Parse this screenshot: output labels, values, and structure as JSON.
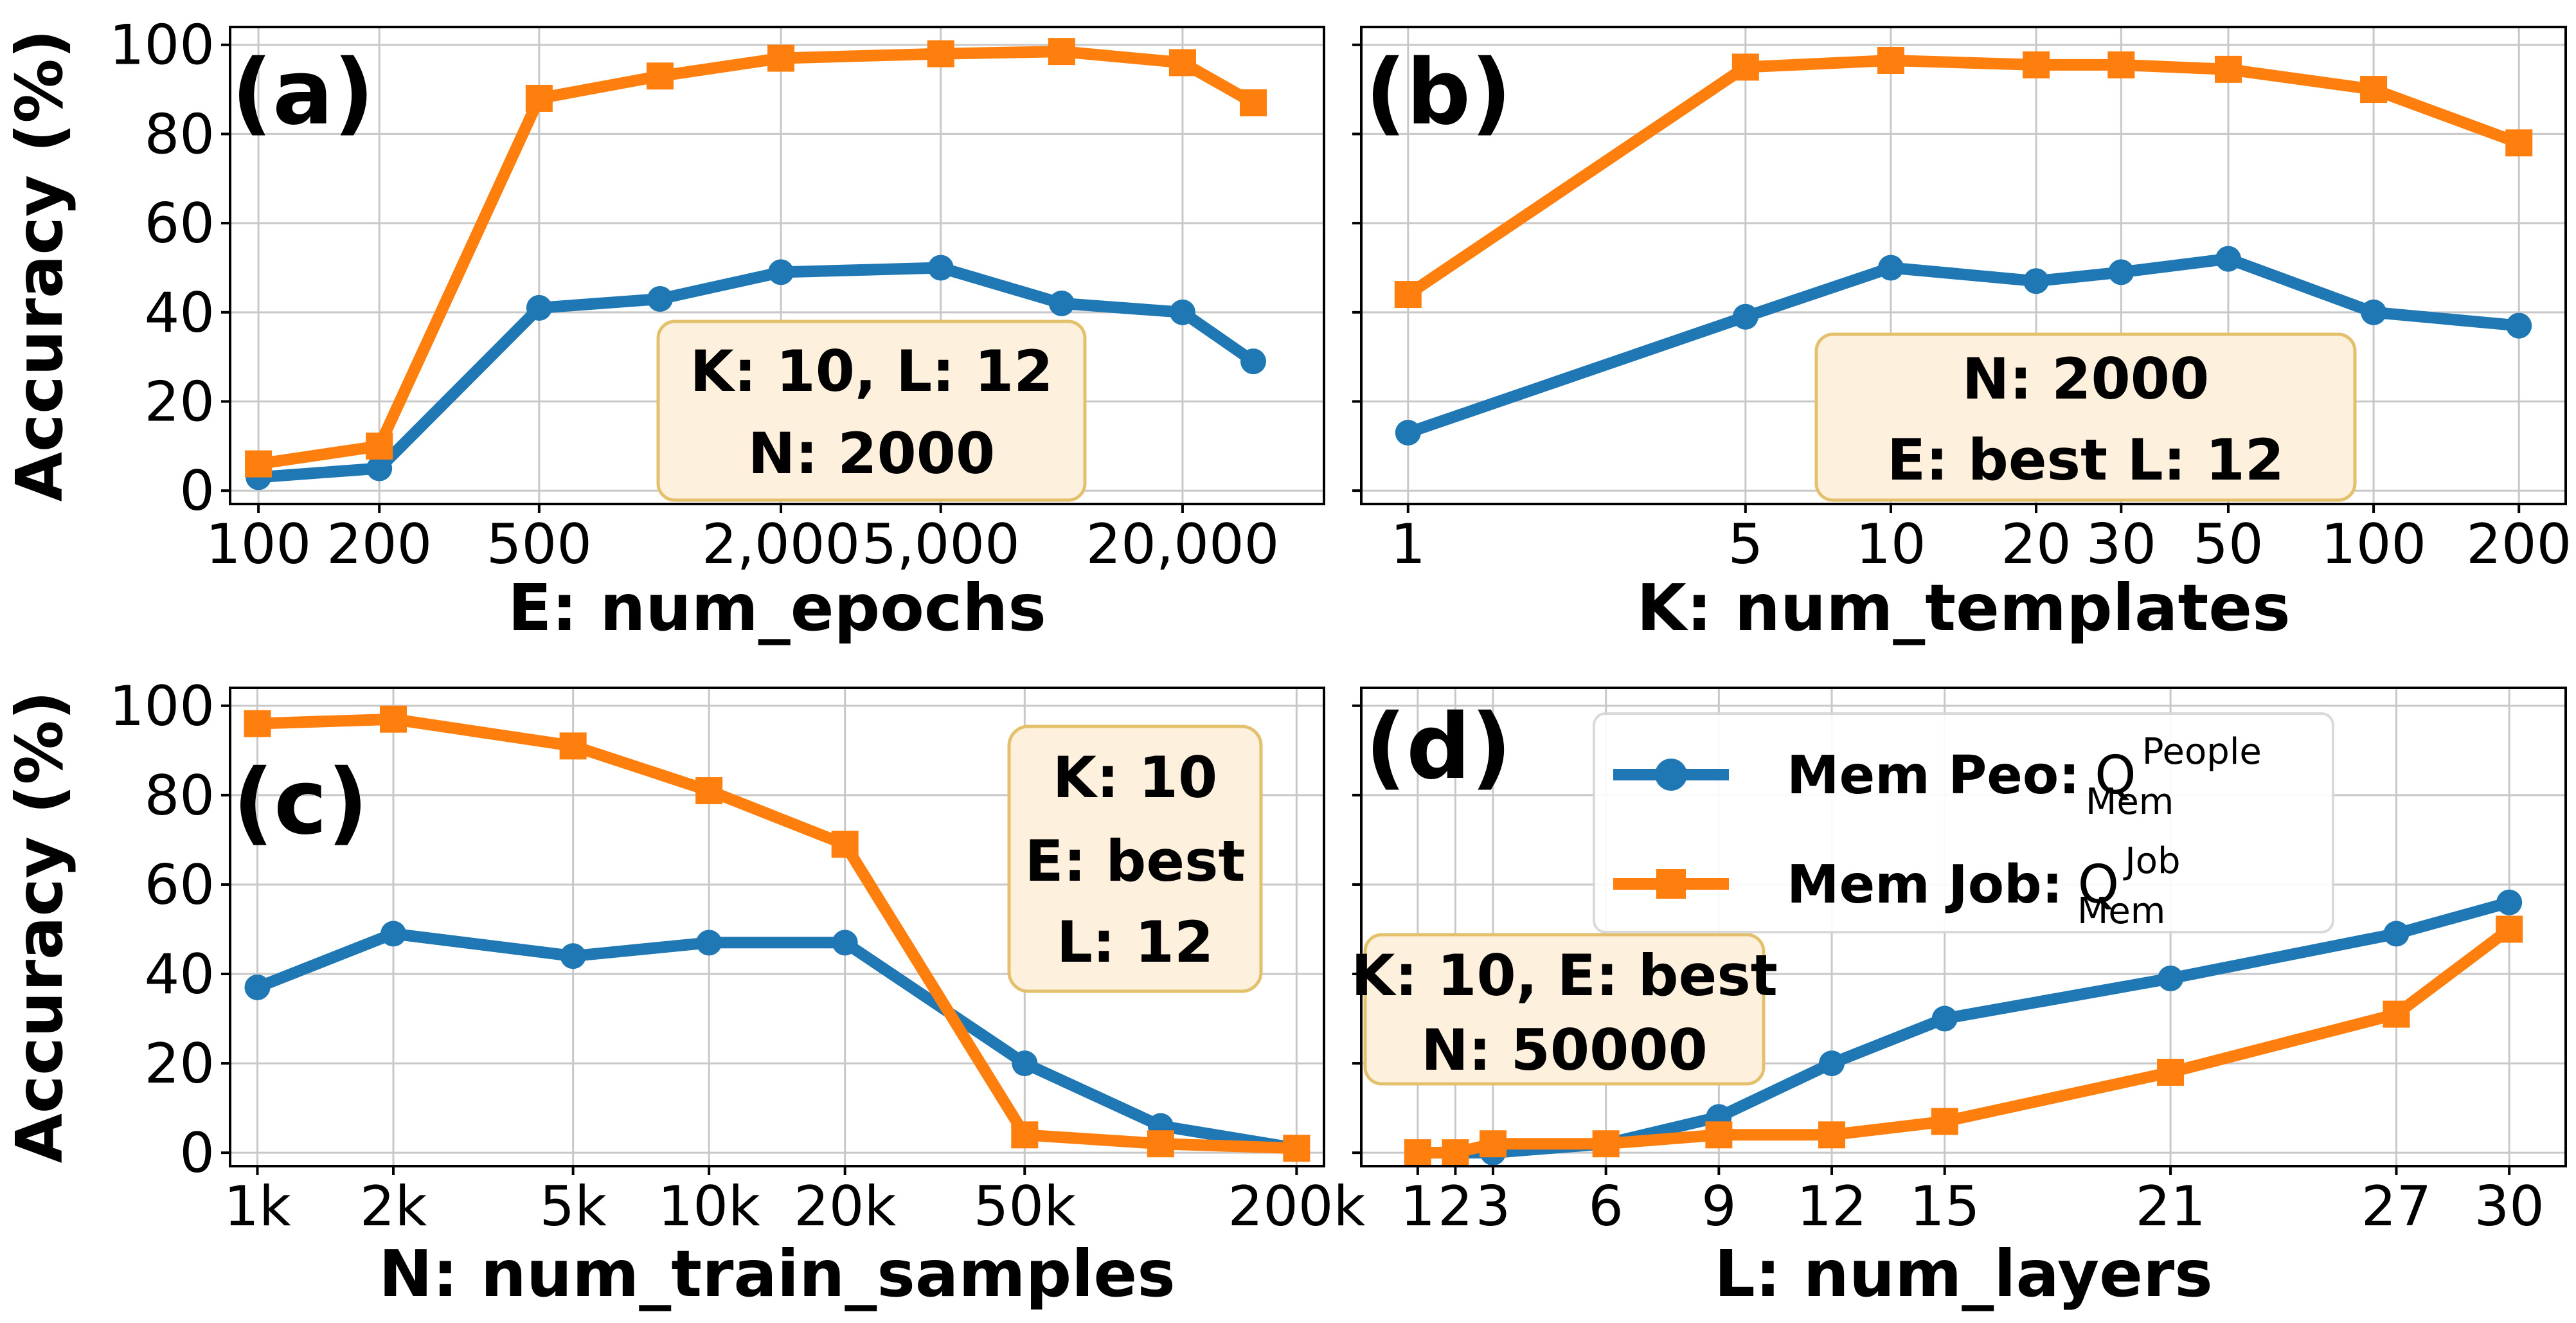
{
  "colors": {
    "blue": "#1f77b4",
    "orange": "#ff7f0e"
  },
  "legend": {
    "items": [
      {
        "series": "peo",
        "label": "Mem Peo:",
        "symbol": "Q",
        "sup": "People",
        "sub": "Mem"
      },
      {
        "series": "job",
        "label": "Mem Job:",
        "symbol": "Q",
        "sup": "Job",
        "sub": "Mem"
      }
    ]
  },
  "chart_data": [
    {
      "id": "a",
      "panel_label": "(a)",
      "type": "line",
      "xlabel": "E: num_epochs",
      "ylabel": "Accuracy (%)",
      "xscale": "log",
      "xlim": [
        85,
        45000
      ],
      "ylim": [
        -3,
        104
      ],
      "xticks": [
        100,
        200,
        500,
        2000,
        5000,
        20000
      ],
      "xtick_labels": [
        "100",
        "200",
        "500",
        "2,000",
        "5,000",
        "20,000"
      ],
      "yticks": [
        0,
        20,
        40,
        60,
        80,
        100
      ],
      "ytick_labels": [
        "0",
        "20",
        "40",
        "60",
        "80",
        "100"
      ],
      "x": [
        100,
        200,
        500,
        1000,
        2000,
        5000,
        10000,
        20000,
        30000
      ],
      "series": [
        {
          "key": "peo",
          "name": "Mem Peo",
          "values": [
            3,
            5,
            41,
            43,
            49,
            50,
            42,
            40,
            29
          ]
        },
        {
          "key": "job",
          "name": "Mem Job",
          "values": [
            6,
            10,
            88,
            93,
            97,
            98,
            98.5,
            96,
            87
          ]
        }
      ],
      "annotation": [
        "K: 10, L: 12",
        "N: 2000"
      ]
    },
    {
      "id": "b",
      "panel_label": "(b)",
      "type": "line",
      "xlabel": "K: num_templates",
      "ylabel": "",
      "xscale": "log",
      "xlim": [
        0.8,
        250
      ],
      "ylim": [
        -3,
        104
      ],
      "xticks": [
        1,
        5,
        10,
        20,
        30,
        50,
        100,
        200
      ],
      "xtick_labels": [
        "1",
        "5",
        "10",
        "20",
        "30",
        "50",
        "100",
        "200"
      ],
      "yticks": [
        0,
        20,
        40,
        60,
        80,
        100
      ],
      "ytick_labels": [],
      "x": [
        1,
        5,
        10,
        20,
        30,
        50,
        100,
        200
      ],
      "series": [
        {
          "key": "peo",
          "name": "Mem Peo",
          "values": [
            13,
            39,
            50,
            47,
            49,
            52,
            40,
            37
          ]
        },
        {
          "key": "job",
          "name": "Mem Job",
          "values": [
            44,
            95,
            96.5,
            95.5,
            95.5,
            94.5,
            90,
            78
          ]
        }
      ],
      "annotation": [
        "N: 2000",
        "E: best L: 12"
      ]
    },
    {
      "id": "c",
      "panel_label": "(c)",
      "type": "line",
      "xlabel": "N: num_train_samples",
      "ylabel": "Accuracy (%)",
      "xscale": "log",
      "xlim": [
        870,
        230000
      ],
      "ylim": [
        -3,
        104
      ],
      "xticks": [
        1000,
        2000,
        5000,
        10000,
        20000,
        50000,
        200000
      ],
      "xtick_labels": [
        "1k",
        "2k",
        "5k",
        "10k",
        "20k",
        "50k",
        "200k"
      ],
      "yticks": [
        0,
        20,
        40,
        60,
        80,
        100
      ],
      "ytick_labels": [
        "0",
        "20",
        "40",
        "60",
        "80",
        "100"
      ],
      "x": [
        1000,
        2000,
        5000,
        10000,
        20000,
        50000,
        100000,
        200000
      ],
      "series": [
        {
          "key": "peo",
          "name": "Mem Peo",
          "values": [
            37,
            49,
            44,
            47,
            47,
            20,
            6,
            1
          ]
        },
        {
          "key": "job",
          "name": "Mem Job",
          "values": [
            96,
            97,
            91,
            81,
            69,
            4,
            2,
            1
          ]
        }
      ],
      "annotation": [
        "K: 10",
        "E: best",
        "L: 12"
      ]
    },
    {
      "id": "d",
      "panel_label": "(d)",
      "type": "line",
      "xlabel": "L: num_layers",
      "ylabel": "",
      "xscale": "linear",
      "xlim": [
        -0.5,
        31.5
      ],
      "ylim": [
        -3,
        104
      ],
      "xticks": [
        1,
        2,
        3,
        6,
        9,
        12,
        15,
        21,
        27,
        30
      ],
      "xtick_labels": [
        "1",
        "2",
        "3",
        "6",
        "9",
        "12",
        "15",
        "21",
        "27",
        "30"
      ],
      "yticks": [
        0,
        20,
        40,
        60,
        80,
        100
      ],
      "ytick_labels": [],
      "x": [
        1,
        2,
        3,
        6,
        9,
        12,
        15,
        21,
        27,
        30
      ],
      "series": [
        {
          "key": "peo",
          "name": "Mem Peo",
          "values": [
            0,
            0,
            0,
            2,
            8,
            20,
            30,
            39,
            49,
            56
          ]
        },
        {
          "key": "job",
          "name": "Mem Job",
          "values": [
            0,
            0,
            2,
            2,
            4,
            4,
            7,
            18,
            31,
            50
          ]
        }
      ],
      "annotation": [
        "K: 10, E: best",
        "N: 50000"
      ]
    }
  ]
}
